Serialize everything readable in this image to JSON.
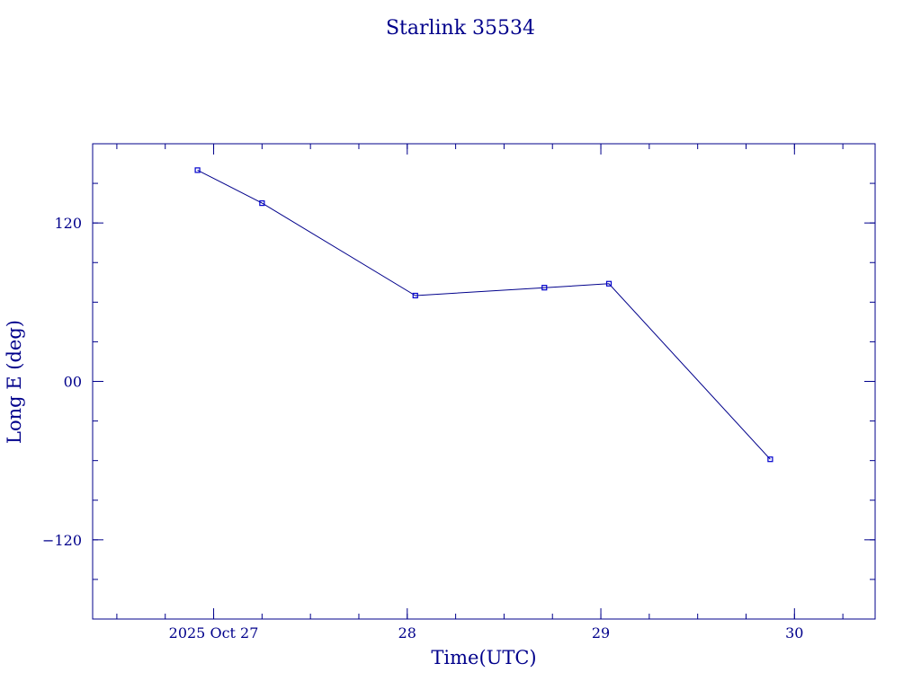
{
  "chart_data": {
    "type": "line",
    "title": "Starlink 35534",
    "xlabel": "Time(UTC)",
    "ylabel": "Long E (deg)",
    "x_tick_labels": [
      {
        "x": "2025-10-27",
        "label": "2025 Oct 27"
      },
      {
        "x": "2025-10-28",
        "label": "28"
      },
      {
        "x": "2025-10-29",
        "label": "29"
      },
      {
        "x": "2025-10-30",
        "label": "30"
      }
    ],
    "y_tick_labels": [
      {
        "y": 120,
        "label": "120"
      },
      {
        "y": 0,
        "label": "00"
      },
      {
        "y": -120,
        "label": "−120"
      }
    ],
    "xlim": [
      "2025-10-26 09:00",
      "2025-10-30 10:00"
    ],
    "ylim": [
      -180,
      180
    ],
    "grid": false,
    "series": [
      {
        "x": [
          "2025-10-26 22:00",
          "2025-10-27 06:00",
          "2025-10-28 01:00",
          "2025-10-28 17:00",
          "2025-10-29 01:00",
          "2025-10-29 21:00"
        ],
        "y": [
          160,
          135,
          65,
          71,
          74,
          -59
        ]
      }
    ],
    "colors": {
      "line": "#00008b",
      "marker": "#0000cd",
      "axes": "#00008b",
      "text": "#00008b"
    }
  }
}
